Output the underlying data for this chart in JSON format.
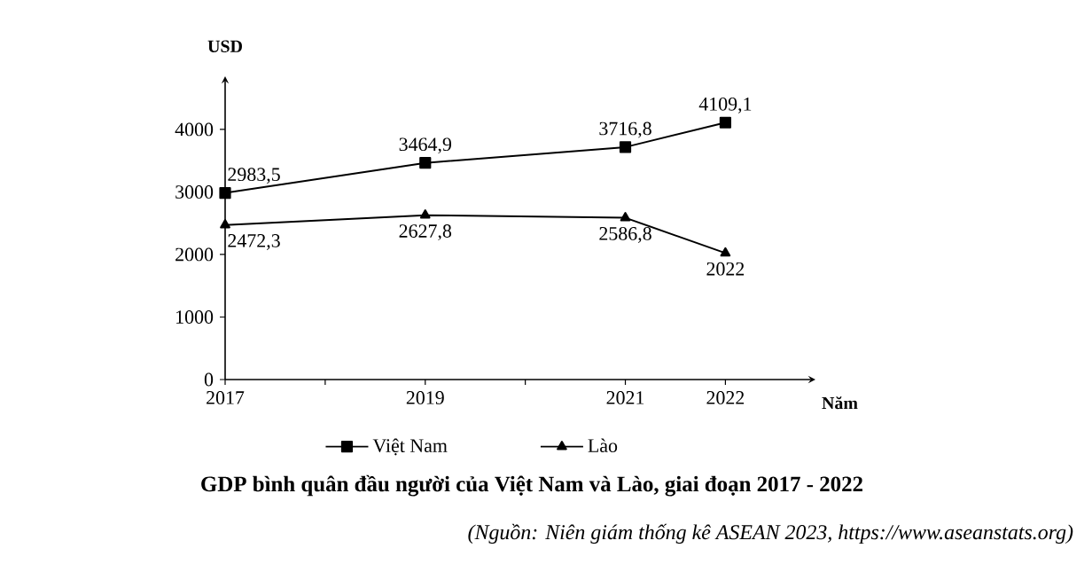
{
  "chart_data": {
    "type": "line",
    "title": "GDP bình quân đầu người của Việt Nam và Lào, giai đoạn 2017 - 2022",
    "annotations": [
      "(Nguồn: Niên giám thống kê ASEAN 2023, https://www.aseanstats.org)"
    ],
    "xlabel": "Năm",
    "ylabel": "USD",
    "x": [
      2017,
      2019,
      2021,
      2022
    ],
    "xlim": [
      2017,
      2022.9
    ],
    "ylim": [
      0,
      4850
    ],
    "xticks": [
      2017,
      {
        "value": 2018,
        "label": null
      },
      2019,
      {
        "value": 2020,
        "label": null
      },
      2021,
      2022
    ],
    "yticks": [
      0,
      1000,
      2000,
      3000,
      4000
    ],
    "series": [
      {
        "name": "Việt Nam",
        "color": "#000000",
        "marker": "square",
        "values": [
          2983.5,
          3464.9,
          3716.8,
          4109.1
        ],
        "value_labels": [
          "2983,5",
          "3464,9",
          "3716,8",
          "4109,1"
        ]
      },
      {
        "name": "Lào",
        "color": "#000000",
        "marker": "triangle",
        "values": [
          2472.3,
          2627.8,
          2586.8,
          2022
        ],
        "value_labels": [
          "2472,3",
          "2627,8",
          "2586,8",
          "2022"
        ]
      }
    ],
    "legend": "bottom",
    "grid": false
  }
}
